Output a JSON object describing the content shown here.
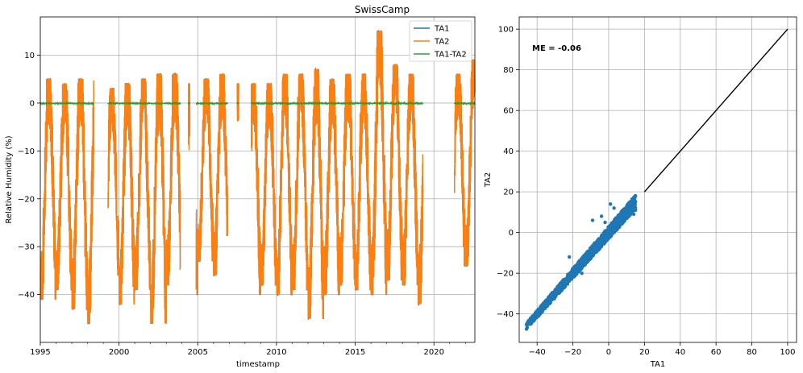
{
  "chart_data": [
    {
      "type": "line",
      "title": "SwissCamp",
      "xlabel": "timestamp",
      "ylabel": "Relative Humidity (%)",
      "xlim": [
        1995,
        2022.6
      ],
      "ylim": [
        -50,
        18
      ],
      "x_ticks": [
        1995,
        2000,
        2005,
        2010,
        2015,
        2020
      ],
      "y_ticks": [
        -40,
        -30,
        -20,
        -10,
        0,
        10
      ],
      "grid": true,
      "legend_position": "top-right",
      "colors": {
        "TA1": "#1f77b4",
        "TA2": "#ff7f0e",
        "TA1-TA2": "#2ca02c"
      },
      "series": [
        {
          "name": "TA1",
          "color": "#1f77b4"
        },
        {
          "name": "TA2",
          "color": "#ff7f0e"
        },
        {
          "name": "TA1-TA2",
          "color": "#2ca02c"
        }
      ],
      "data_segments": [
        [
          1995.0,
          1998.4
        ],
        [
          1999.3,
          2003.9
        ],
        [
          2004.4,
          2004.5
        ],
        [
          2004.9,
          2006.9
        ],
        [
          2007.5,
          2007.6
        ],
        [
          2008.4,
          2019.3
        ],
        [
          2021.3,
          2022.6
        ]
      ],
      "yearly_range": [
        [
          1995,
          -41,
          5
        ],
        [
          1996,
          -39,
          4
        ],
        [
          1997,
          -43,
          5
        ],
        [
          1998,
          -46,
          7
        ],
        [
          1999,
          -36,
          3
        ],
        [
          2000,
          -42,
          4
        ],
        [
          2001,
          -39,
          5
        ],
        [
          2002,
          -46,
          6
        ],
        [
          2003,
          -38,
          6
        ],
        [
          2004,
          -40,
          4
        ],
        [
          2005,
          -33,
          5
        ],
        [
          2006,
          -36,
          6
        ],
        [
          2007,
          -30,
          4
        ],
        [
          2008,
          -40,
          4
        ],
        [
          2009,
          -38,
          4
        ],
        [
          2010,
          -40,
          6
        ],
        [
          2011,
          -39,
          6
        ],
        [
          2012,
          -45,
          7
        ],
        [
          2013,
          -40,
          5
        ],
        [
          2014,
          -38,
          6
        ],
        [
          2015,
          -39,
          6
        ],
        [
          2016,
          -40,
          15
        ],
        [
          2017,
          -37,
          8
        ],
        [
          2018,
          -38,
          6
        ],
        [
          2019,
          -42,
          6
        ],
        [
          2021,
          -34,
          6
        ],
        [
          2022,
          -34,
          9
        ]
      ]
    },
    {
      "type": "scatter",
      "xlabel": "TA1",
      "ylabel": "TA2",
      "xlim": [
        -50,
        105
      ],
      "ylim": [
        -54,
        106
      ],
      "x_ticks": [
        -40,
        -20,
        0,
        20,
        40,
        60,
        80,
        100
      ],
      "y_ticks": [
        -40,
        -20,
        0,
        20,
        40,
        60,
        80,
        100
      ],
      "grid": true,
      "annotation": "ME = -0.06",
      "point_color": "#1f77b4",
      "reference_line": {
        "x": [
          20,
          100
        ],
        "y": [
          20,
          100
        ],
        "color": "#000000"
      },
      "point_cloud": {
        "x_range": [
          -46,
          15
        ],
        "slope": 1.0,
        "offset": 0.06,
        "spread": 2.5
      },
      "outliers": [
        [
          -9,
          6
        ],
        [
          -4,
          8
        ],
        [
          -2,
          5
        ],
        [
          1,
          14
        ],
        [
          3,
          12
        ],
        [
          15,
          11
        ],
        [
          14,
          9
        ],
        [
          -22,
          -12
        ],
        [
          -15,
          -20
        ]
      ]
    }
  ]
}
